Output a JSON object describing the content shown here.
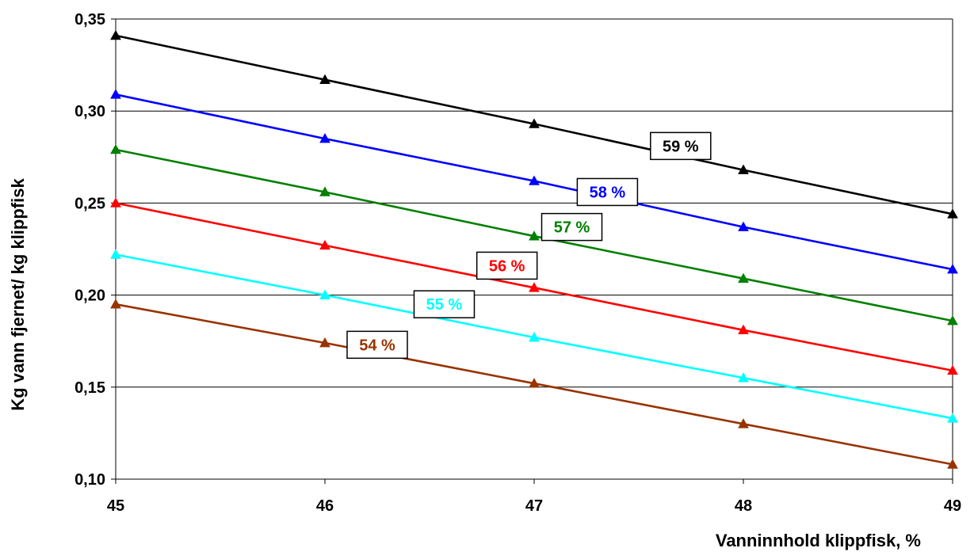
{
  "chart_data": {
    "type": "line",
    "xlabel": "Vanninnhold klippfisk,  %",
    "ylabel": "Kg vann fjernet/ kg klippfisk",
    "xlim": [
      45,
      49
    ],
    "ylim": [
      0.1,
      0.35
    ],
    "x": [
      45,
      46,
      47,
      48,
      49
    ],
    "x_tick_labels": [
      "45",
      "46",
      "47",
      "48",
      "49"
    ],
    "y_ticks": [
      0.1,
      0.15,
      0.2,
      0.25,
      0.3,
      0.35
    ],
    "y_tick_labels": [
      "0,10",
      "0,15",
      "0,20",
      "0,25",
      "0,30",
      "0,35"
    ],
    "grid": "horizontal",
    "legend": "none",
    "series": [
      {
        "name": "59 %",
        "color": "#000000",
        "values": [
          0.341,
          0.317,
          0.293,
          0.268,
          0.244
        ],
        "label_at": [
          47.7,
          0.281
        ]
      },
      {
        "name": "58 %",
        "color": "#0000ff",
        "values": [
          0.309,
          0.285,
          0.262,
          0.237,
          0.214
        ],
        "label_at": [
          47.35,
          0.256
        ]
      },
      {
        "name": "57 %",
        "color": "#008000",
        "values": [
          0.279,
          0.256,
          0.232,
          0.209,
          0.186
        ],
        "label_at": [
          47.18,
          0.237
        ]
      },
      {
        "name": "56 %",
        "color": "#ff0000",
        "values": [
          0.25,
          0.227,
          0.204,
          0.181,
          0.159
        ],
        "label_at": [
          46.87,
          0.216
        ]
      },
      {
        "name": "55 %",
        "color": "#00ffff",
        "values": [
          0.222,
          0.2,
          0.177,
          0.155,
          0.133
        ],
        "label_at": [
          46.57,
          0.195
        ]
      },
      {
        "name": "54 %",
        "color": "#993300",
        "values": [
          0.195,
          0.174,
          0.152,
          0.13,
          0.108
        ],
        "label_at": [
          46.25,
          0.173
        ]
      }
    ]
  }
}
